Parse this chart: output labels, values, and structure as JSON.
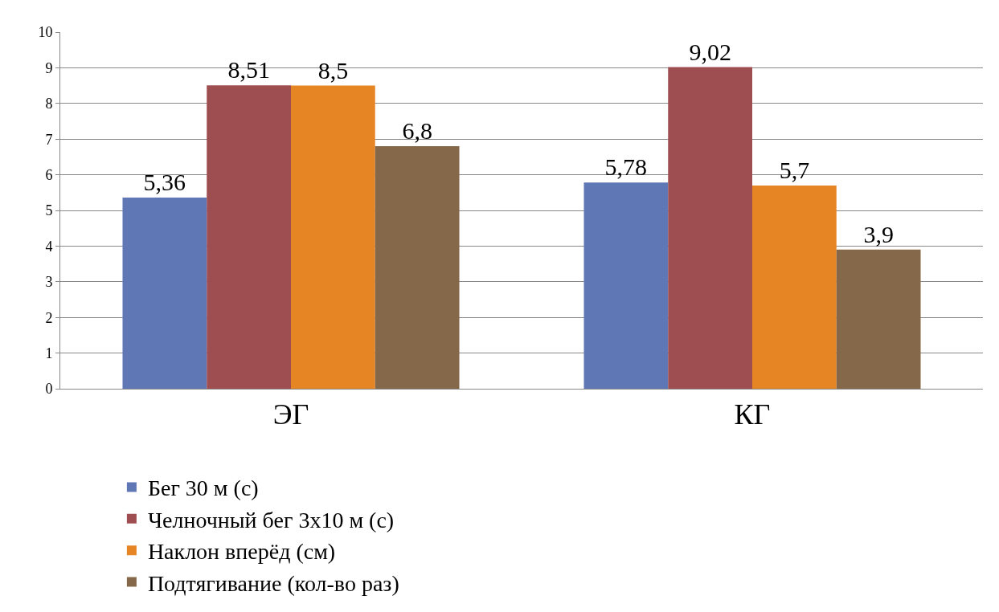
{
  "chart_data": {
    "type": "bar",
    "categories": [
      "ЭГ",
      "КГ"
    ],
    "series": [
      {
        "name": "Бег 30 м (с)",
        "color": "#5f77b5",
        "values": [
          5.36,
          5.78
        ],
        "value_labels": [
          "5,36",
          "5,78"
        ]
      },
      {
        "name": "Челночный бег 3х10 м (с)",
        "color": "#9e4e50",
        "values": [
          8.51,
          9.02
        ],
        "value_labels": [
          "8,51",
          "9,02"
        ]
      },
      {
        "name": "Наклон вперёд (см)",
        "color": "#e68523",
        "values": [
          8.5,
          5.7
        ],
        "value_labels": [
          "8,5",
          "5,7"
        ]
      },
      {
        "name": "Подтягивание (кол-во раз)",
        "color": "#85684a",
        "values": [
          6.8,
          3.9
        ],
        "value_labels": [
          "6,8",
          "3,9"
        ]
      }
    ],
    "ylim": [
      0,
      10
    ],
    "yticks": [
      0,
      1,
      2,
      3,
      4,
      5,
      6,
      7,
      8,
      9,
      10
    ],
    "grid": "y",
    "legend": "bottom"
  }
}
